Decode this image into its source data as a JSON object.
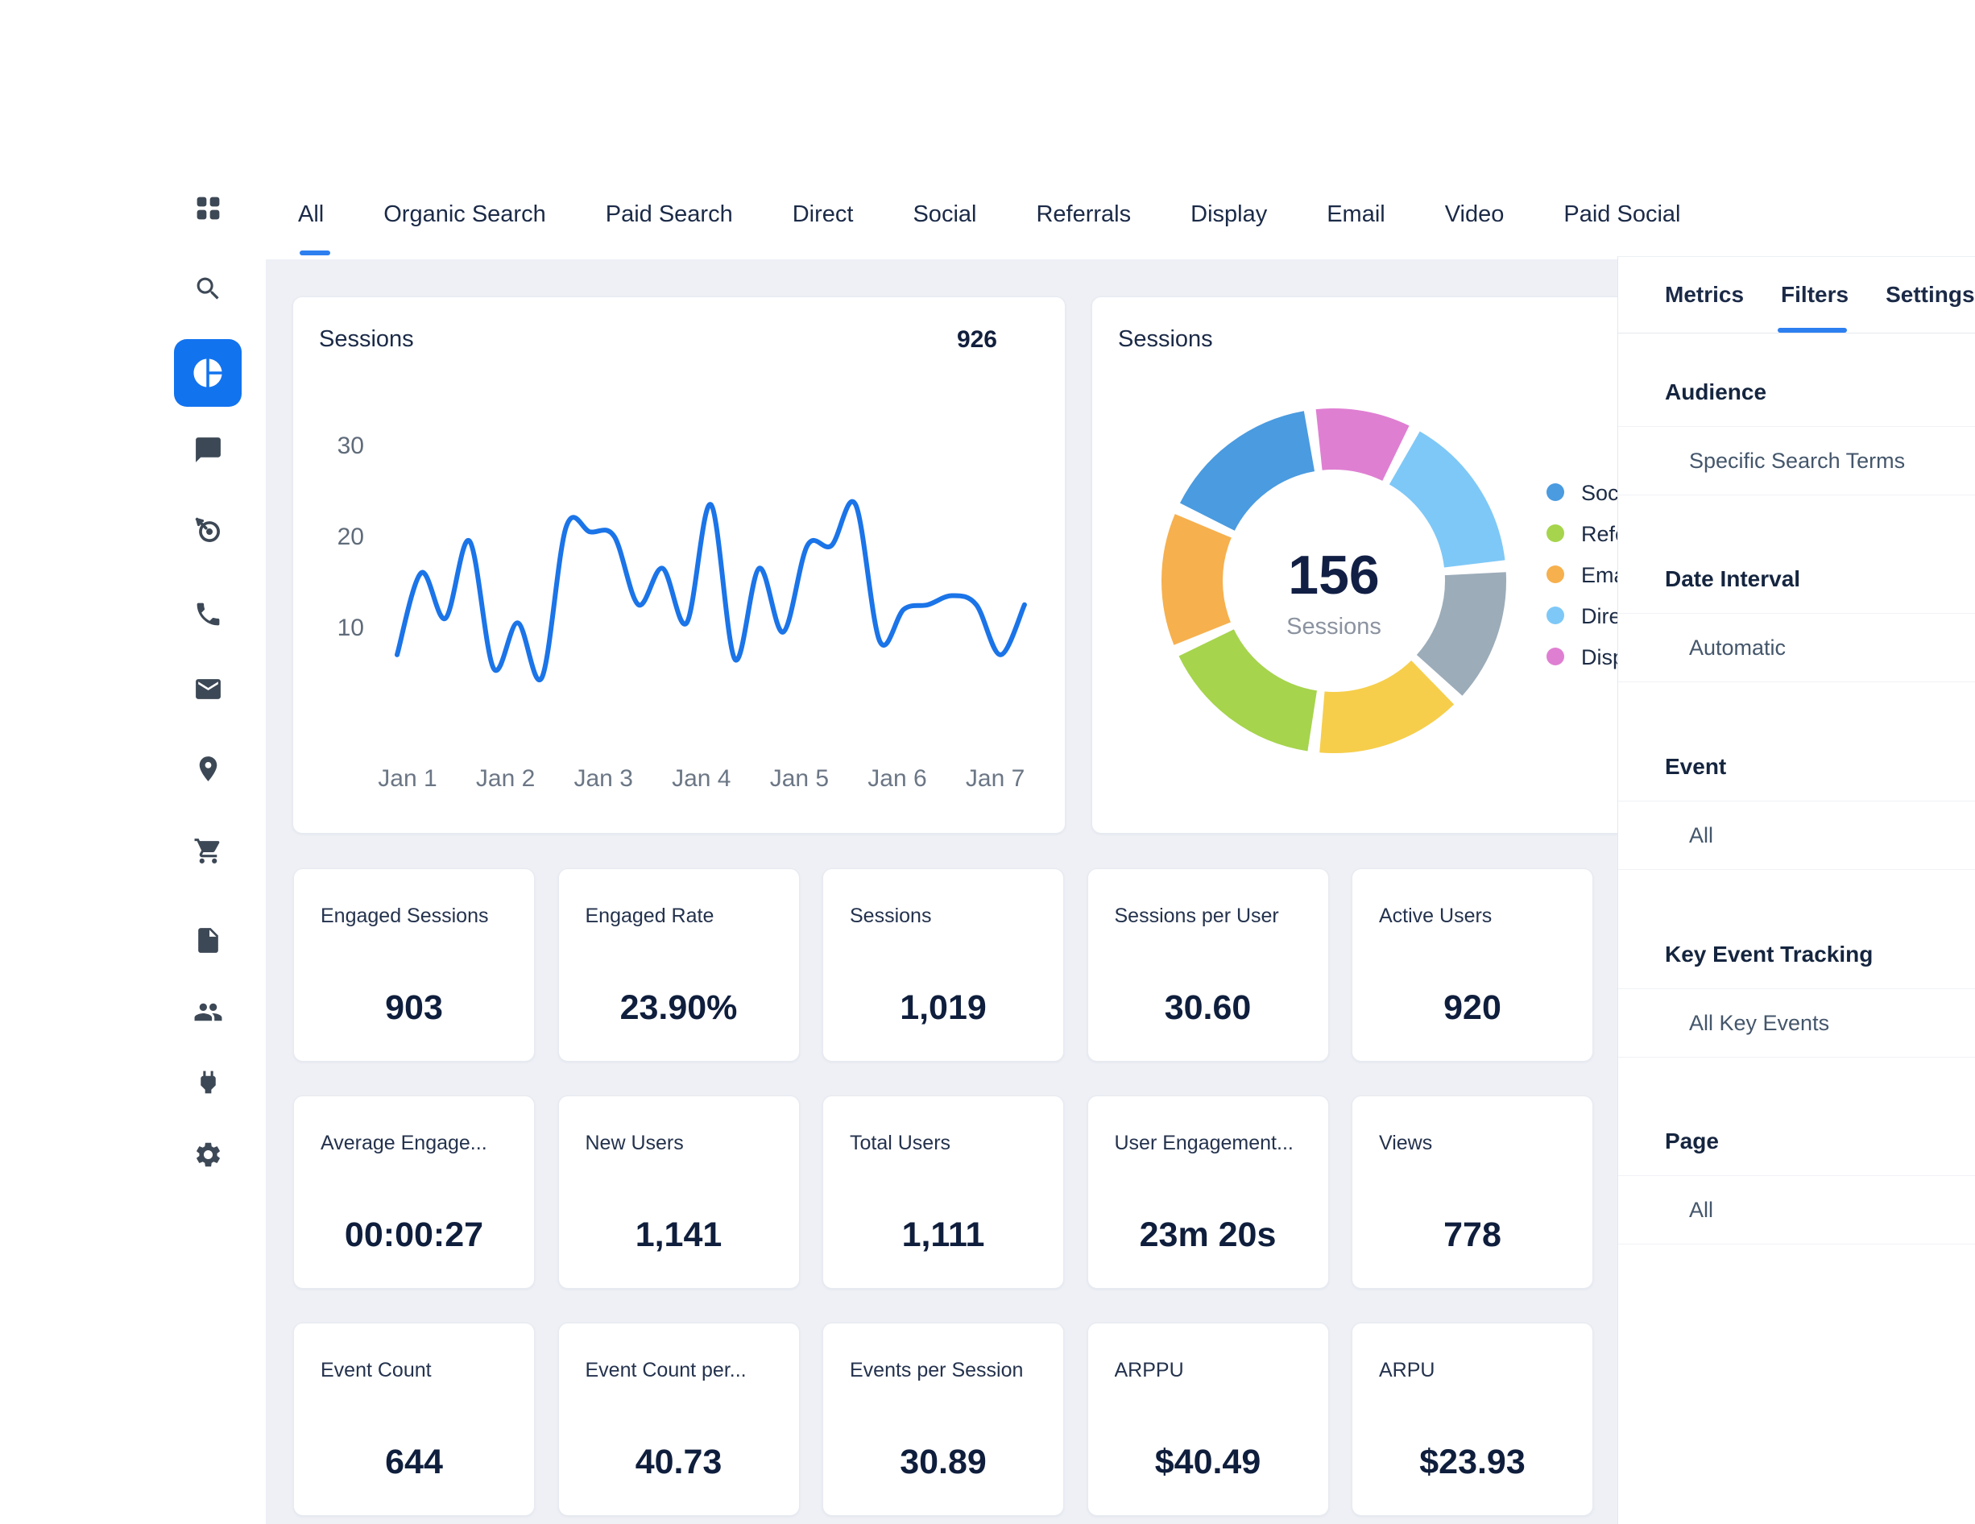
{
  "tabs": {
    "items": [
      "All",
      "Organic Search",
      "Paid Search",
      "Direct",
      "Social",
      "Referrals",
      "Display",
      "Email",
      "Video",
      "Paid Social"
    ],
    "active": "All"
  },
  "sidebar": {
    "icons": [
      "dashboard-grid",
      "search",
      "pie-chart",
      "chat",
      "target",
      "phone",
      "mail",
      "location",
      "cart",
      "document",
      "users",
      "plug",
      "settings"
    ],
    "active_icon": "pie-chart",
    "active_color": "#1273ef"
  },
  "line_card": {
    "title": "Sessions",
    "total": "926"
  },
  "donut_card": {
    "title": "Sessions",
    "center_value": "156",
    "center_label": "Sessions"
  },
  "chart_data": [
    {
      "type": "line",
      "title": "Sessions",
      "total_label": "926",
      "x": [
        1,
        2,
        3,
        4,
        5,
        6,
        7,
        8,
        9,
        10,
        11,
        12,
        13,
        14,
        15,
        16,
        17,
        18,
        19,
        20,
        21,
        22,
        23,
        24,
        25,
        26,
        27
      ],
      "values": [
        7,
        16,
        11,
        19.5,
        5.5,
        10.5,
        4.5,
        21,
        20.5,
        20,
        12.5,
        16.5,
        10.5,
        23.5,
        6.5,
        16.5,
        9.5,
        19,
        19,
        23.5,
        8.5,
        12,
        12.5,
        13.5,
        12.5,
        7,
        12.5
      ],
      "xticklabels": [
        "Jan 1",
        "Jan 2",
        "Jan 3",
        "Jan 4",
        "Jan 5",
        "Jan 6",
        "Jan 7"
      ],
      "yticks": [
        10,
        20,
        30
      ],
      "ylim": [
        0,
        33
      ],
      "grid": false,
      "line_color": "#1b74e8"
    },
    {
      "type": "pie",
      "subtype": "donut",
      "title": "Sessions",
      "center_value": 156,
      "center_label": "Sessions",
      "segments": [
        {
          "label": "Display",
          "value": 15,
          "color": "#df7fd2"
        },
        {
          "label": "Direct",
          "value": 25,
          "color": "#7ec8f7"
        },
        {
          "label": "",
          "value": 21,
          "color": "#9cacb9"
        },
        {
          "label": "",
          "value": 23,
          "color": "#f6ce4b"
        },
        {
          "label": "Referrals",
          "value": 26,
          "color": "#a6d44d"
        },
        {
          "label": "Email",
          "value": 21,
          "color": "#f6b04e"
        },
        {
          "label": "Social",
          "value": 25,
          "color": "#4a9be0"
        }
      ],
      "legend": [
        {
          "label": "Social",
          "color": "#4a9be0"
        },
        {
          "label": "Referrals",
          "color": "#a6d44d"
        },
        {
          "label": "Email",
          "color": "#f6b04e"
        },
        {
          "label": "Direct",
          "color": "#7ec8f7"
        },
        {
          "label": "Display",
          "color": "#df7fd2"
        }
      ],
      "legend_position": "right"
    }
  ],
  "metrics": {
    "rows": [
      [
        {
          "label": "Engaged Sessions",
          "value": "903"
        },
        {
          "label": "Engaged Rate",
          "value": "23.90%"
        },
        {
          "label": "Sessions",
          "value": "1,019"
        },
        {
          "label": "Sessions per User",
          "value": "30.60"
        },
        {
          "label": "Active Users",
          "value": "920"
        }
      ],
      [
        {
          "label": "Average Engage...",
          "value": "00:00:27"
        },
        {
          "label": "New Users",
          "value": "1,141"
        },
        {
          "label": "Total Users",
          "value": "1,111"
        },
        {
          "label": "User Engagement...",
          "value": "23m 20s"
        },
        {
          "label": "Views",
          "value": "778"
        }
      ],
      [
        {
          "label": "Event Count",
          "value": "644"
        },
        {
          "label": "Event Count per...",
          "value": "40.73"
        },
        {
          "label": "Events per Session",
          "value": "30.89"
        },
        {
          "label": "ARPPU",
          "value": "$40.49"
        },
        {
          "label": "ARPU",
          "value": "$23.93"
        }
      ]
    ]
  },
  "panel": {
    "tabs": [
      "Metrics",
      "Filters",
      "Settings"
    ],
    "active_tab": "Filters",
    "sections": [
      {
        "heading": "Audience",
        "value": "Specific Search Terms"
      },
      {
        "heading": "Date Interval",
        "value": "Automatic"
      },
      {
        "heading": "Event",
        "value": "All"
      },
      {
        "heading": "Key Event Tracking",
        "value": "All Key Events"
      },
      {
        "heading": "Page",
        "value": "All"
      }
    ]
  },
  "colors": {
    "accent_blue": "#1273ef",
    "tab_underline": "#2d7ff0",
    "line_chart": "#1b74e8",
    "content_background": "#eef0f6",
    "navy_text": "#1b2a47"
  }
}
